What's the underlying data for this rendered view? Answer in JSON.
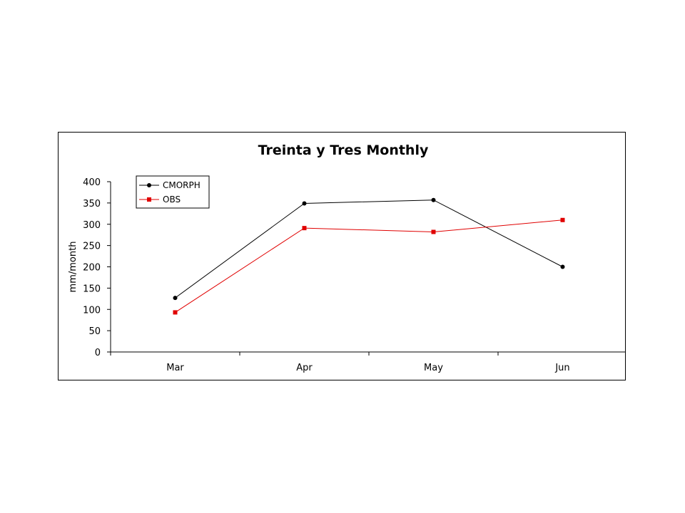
{
  "chart_data": {
    "type": "line",
    "title": "Treinta y Tres Monthly",
    "xlabel": "",
    "ylabel": "mm/month",
    "categories": [
      "Mar",
      "Apr",
      "May",
      "Jun"
    ],
    "ylim": [
      0,
      400
    ],
    "yticks": [
      0,
      50,
      100,
      150,
      200,
      250,
      300,
      350,
      400
    ],
    "grid": false,
    "legend": "top-left",
    "series": [
      {
        "name": "CMORPH",
        "values": [
          127,
          349,
          357,
          200
        ],
        "color": "#000000",
        "marker": "circle"
      },
      {
        "name": "OBS",
        "values": [
          93,
          291,
          282,
          310
        ],
        "color": "#e00000",
        "marker": "square"
      }
    ]
  }
}
